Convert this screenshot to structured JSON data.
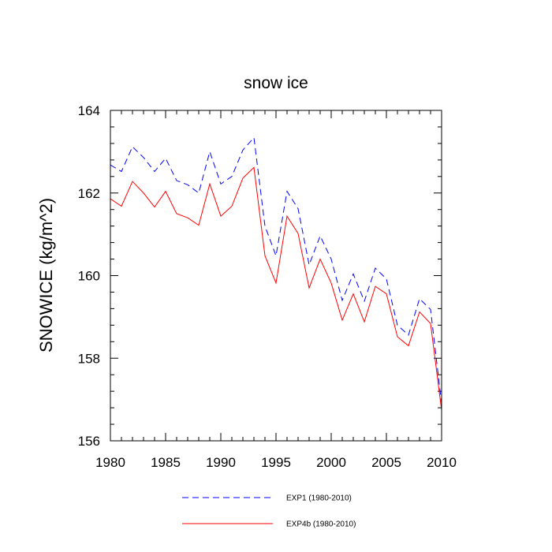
{
  "chart_data": {
    "type": "line",
    "title": "snow ice",
    "xlabel": "",
    "ylabel": "SNOWICE  (kg/m^2)",
    "xlim": [
      1980,
      2010
    ],
    "ylim": [
      156,
      164
    ],
    "xticks": [
      1980,
      1985,
      1990,
      1995,
      2000,
      2005,
      2010
    ],
    "yticks": [
      156,
      158,
      160,
      162,
      164
    ],
    "grid": false,
    "legend_position": "bottom",
    "x": [
      1980,
      1981,
      1982,
      1983,
      1984,
      1985,
      1986,
      1987,
      1988,
      1989,
      1990,
      1991,
      1992,
      1993,
      1994,
      1995,
      1996,
      1997,
      1998,
      1999,
      2000,
      2001,
      2002,
      2003,
      2004,
      2005,
      2006,
      2007,
      2008,
      2009,
      2010
    ],
    "series": [
      {
        "name": "EXP1 (1980-2010)",
        "color": "#0000ff",
        "dash": "dashed",
        "values": [
          162.68,
          162.52,
          163.12,
          162.86,
          162.52,
          162.84,
          162.3,
          162.2,
          162.0,
          163.0,
          162.22,
          162.4,
          163.04,
          163.34,
          161.2,
          160.48,
          162.04,
          161.62,
          160.26,
          160.96,
          160.4,
          159.4,
          160.04,
          159.38,
          160.18,
          159.92,
          158.8,
          158.56,
          159.44,
          159.18,
          156.9
        ]
      },
      {
        "name": "EXP4b (1980-2010)",
        "color": "#ff0000",
        "dash": "solid",
        "values": [
          161.86,
          161.68,
          162.28,
          162.0,
          161.66,
          162.04,
          161.5,
          161.4,
          161.22,
          162.22,
          161.44,
          161.68,
          162.36,
          162.62,
          160.48,
          159.82,
          161.44,
          161.02,
          159.7,
          160.4,
          159.82,
          158.92,
          159.56,
          158.88,
          159.74,
          159.56,
          158.52,
          158.3,
          159.12,
          158.84,
          156.74
        ]
      }
    ]
  }
}
